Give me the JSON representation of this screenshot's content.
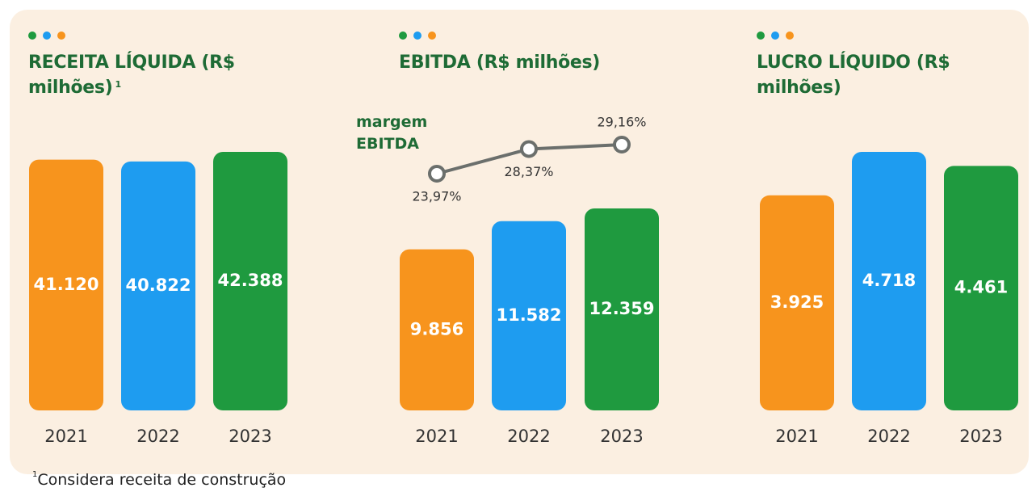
{
  "chart_data": [
    {
      "type": "bar",
      "title": "RECEITA LÍQUIDA (R$ milhões)",
      "title_note": "1",
      "categories": [
        "2021",
        "2022",
        "2023"
      ],
      "values": [
        41120,
        40822,
        42388
      ],
      "value_labels": [
        "41.120",
        "40.822",
        "42.388"
      ],
      "colors": [
        "#f7941d",
        "#1e9cf0",
        "#1f9a3f"
      ]
    },
    {
      "type": "bar",
      "title": "EBITDA (R$ milhões)",
      "categories": [
        "2021",
        "2022",
        "2023"
      ],
      "values": [
        9856,
        11582,
        12359
      ],
      "value_labels": [
        "9.856",
        "11.582",
        "12.359"
      ],
      "colors": [
        "#f7941d",
        "#1e9cf0",
        "#1f9a3f"
      ],
      "line": {
        "name": "margem EBITDA",
        "color": "#6b6f6c",
        "values": [
          23.97,
          28.37,
          29.16
        ],
        "value_labels": [
          "23,97%",
          "28,37%",
          "29,16%"
        ]
      }
    },
    {
      "type": "bar",
      "title": "LUCRO LÍQUIDO (R$ milhões)",
      "categories": [
        "2021",
        "2022",
        "2023"
      ],
      "values": [
        3925,
        4718,
        4461
      ],
      "value_labels": [
        "3.925",
        "4.718",
        "4.461"
      ],
      "colors": [
        "#f7941d",
        "#1e9cf0",
        "#1f9a3f"
      ]
    }
  ],
  "footnote": "Considera receita de construção"
}
